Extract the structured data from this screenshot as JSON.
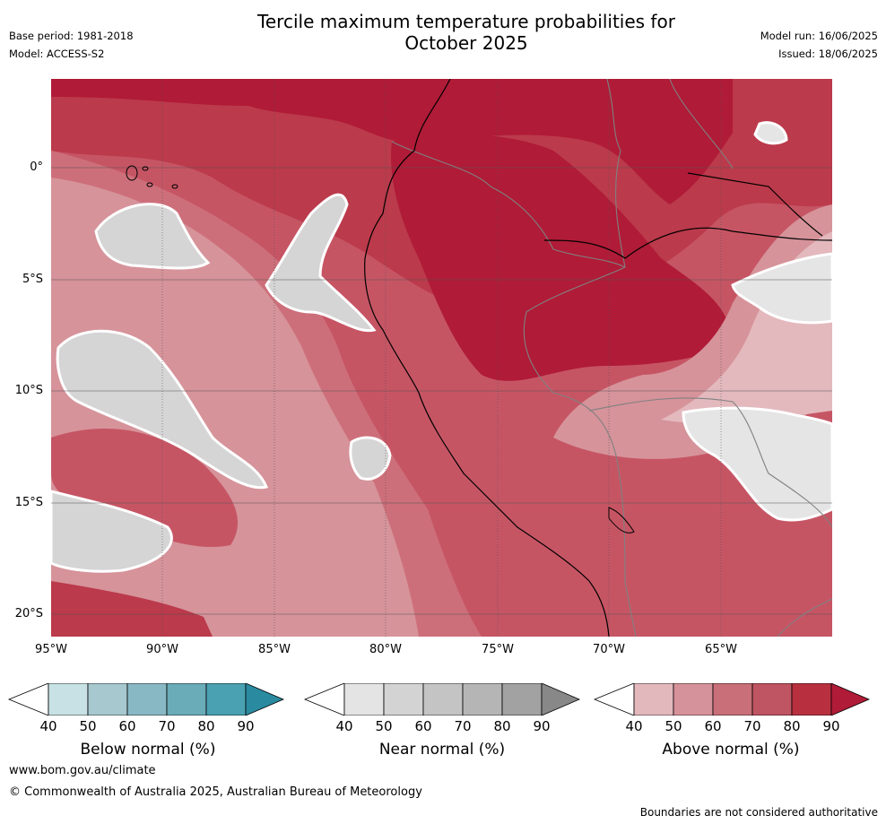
{
  "title_line1": "Tercile maximum temperature probabilities for",
  "title_line2": "October 2025",
  "base_period": "Base period: 1981-2018",
  "model": "Model: ACCESS-S2",
  "model_run": "Model run: 16/06/2025",
  "issued": "Issued: 18/06/2025",
  "lat_ticks": [
    "0°",
    "5°S",
    "10°S",
    "15°S",
    "20°S"
  ],
  "lon_ticks": [
    "95°W",
    "90°W",
    "85°W",
    "80°W",
    "75°W",
    "70°W",
    "65°W"
  ],
  "colorbars": [
    {
      "label": "Below normal (%)",
      "ticks": [
        "40",
        "50",
        "60",
        "70",
        "80",
        "90"
      ],
      "colors": [
        "#ffffff",
        "#c8e1e5",
        "#a6c8ce",
        "#88b8c3",
        "#6aacb8",
        "#4aa1b1",
        "#2a8aa0"
      ]
    },
    {
      "label": "Near normal (%)",
      "ticks": [
        "40",
        "50",
        "60",
        "70",
        "80",
        "90"
      ],
      "colors": [
        "#ffffff",
        "#e4e4e4",
        "#d3d3d3",
        "#c4c4c4",
        "#b5b5b5",
        "#a2a2a2",
        "#888888"
      ]
    },
    {
      "label": "Above normal (%)",
      "ticks": [
        "40",
        "50",
        "60",
        "70",
        "80",
        "90"
      ],
      "colors": [
        "#ffffff",
        "#e2b8bd",
        "#d6929a",
        "#c96f79",
        "#bf5462",
        "#b8303f",
        "#b01b37"
      ]
    }
  ],
  "map_colors": {
    "above_90": "#b01b37",
    "above_80": "#bb3a4b",
    "above_70": "#c65564",
    "above_60": "#cd6f7a",
    "above_50": "#d6939a",
    "above_40": "#e3b9be",
    "near_50": "#d5d5d5",
    "near_60": "#c8c8c8",
    "near_40": "#e5e5e5",
    "coast": "#000000",
    "border": "#808080",
    "grid": "#555555"
  },
  "website": "www.bom.gov.au/climate",
  "copyright": "© Commonwealth of Australia 2025, Australian Bureau of Meteorology",
  "disclaimer": "Boundaries are not considered authoritative"
}
